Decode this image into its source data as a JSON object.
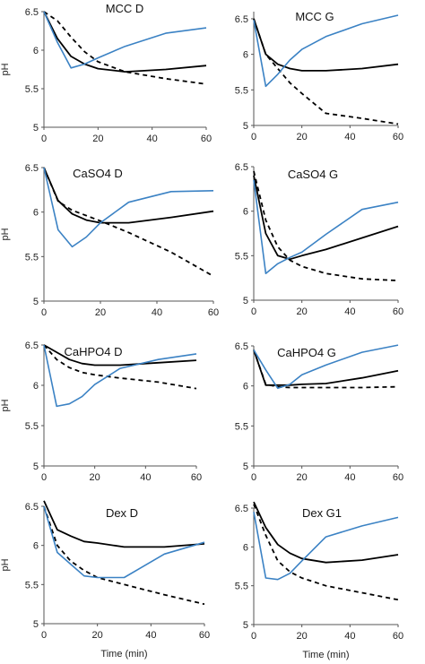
{
  "chart_data": [
    {
      "type": "line",
      "title": "MCC D",
      "ylabel": "pH",
      "xlabel": "",
      "xlim": [
        0,
        60
      ],
      "ylim": [
        5,
        6.5
      ],
      "xticks": [
        "0",
        "20",
        "40",
        "60"
      ],
      "yticks": [
        "5",
        "5.5",
        "6",
        "6.5"
      ],
      "series": [
        {
          "style": "dashed",
          "color": "#000000",
          "x": [
            0,
            5,
            10,
            15,
            20,
            30,
            45,
            60
          ],
          "y": [
            6.5,
            6.38,
            6.17,
            5.98,
            5.85,
            5.72,
            5.63,
            5.56
          ]
        },
        {
          "style": "solid",
          "color": "#000000",
          "x": [
            0,
            5,
            10,
            15,
            20,
            30,
            45,
            60
          ],
          "y": [
            6.5,
            6.15,
            5.92,
            5.82,
            5.76,
            5.72,
            5.75,
            5.8
          ]
        },
        {
          "style": "solid",
          "color": "#3b82c4",
          "x": [
            0,
            5,
            10,
            15,
            20,
            30,
            45,
            60
          ],
          "y": [
            6.5,
            6.1,
            5.77,
            5.82,
            5.9,
            6.05,
            6.22,
            6.29
          ]
        }
      ]
    },
    {
      "type": "line",
      "title": "MCC G",
      "ylabel": "",
      "xlabel": "",
      "xlim": [
        0,
        60
      ],
      "ylim": [
        5,
        6.6
      ],
      "xticks": [
        "0",
        "20",
        "40",
        "60"
      ],
      "yticks": [
        "5",
        "5.5",
        "6",
        "6.5"
      ],
      "series": [
        {
          "style": "dashed",
          "color": "#000000",
          "x": [
            0,
            5,
            10,
            15,
            20,
            30,
            45,
            60
          ],
          "y": [
            6.5,
            6.0,
            5.8,
            5.6,
            5.45,
            5.17,
            5.1,
            5.02
          ]
        },
        {
          "style": "solid",
          "color": "#000000",
          "x": [
            0,
            5,
            10,
            15,
            20,
            30,
            45,
            60
          ],
          "y": [
            6.5,
            6.0,
            5.86,
            5.8,
            5.77,
            5.77,
            5.8,
            5.86
          ]
        },
        {
          "style": "solid",
          "color": "#3b82c4",
          "x": [
            0,
            5,
            10,
            15,
            20,
            30,
            45,
            60
          ],
          "y": [
            6.48,
            5.55,
            5.72,
            5.92,
            6.07,
            6.25,
            6.43,
            6.55
          ]
        }
      ]
    },
    {
      "type": "line",
      "title": "CaSO4 D",
      "ylabel": "pH",
      "xlabel": "",
      "xlim": [
        0,
        60
      ],
      "ylim": [
        5,
        6.5
      ],
      "xticks": [
        "0",
        "20",
        "40",
        "60"
      ],
      "yticks": [
        "5",
        "5.5",
        "6",
        "6.5"
      ],
      "series": [
        {
          "style": "dashed",
          "color": "#000000",
          "x": [
            0,
            5,
            10,
            15,
            20,
            30,
            45,
            60
          ],
          "y": [
            6.5,
            6.12,
            6.02,
            5.96,
            5.9,
            5.77,
            5.55,
            5.28
          ]
        },
        {
          "style": "solid",
          "color": "#000000",
          "x": [
            0,
            5,
            10,
            15,
            20,
            30,
            45,
            60
          ],
          "y": [
            6.5,
            6.13,
            5.98,
            5.91,
            5.88,
            5.88,
            5.94,
            6.01
          ]
        },
        {
          "style": "solid",
          "color": "#3b82c4",
          "x": [
            0,
            5,
            10,
            15,
            20,
            30,
            45,
            60
          ],
          "y": [
            6.5,
            5.8,
            5.61,
            5.72,
            5.88,
            6.11,
            6.23,
            6.24
          ]
        }
      ]
    },
    {
      "type": "line",
      "title": "CaSO4 G",
      "ylabel": "",
      "xlabel": "",
      "xlim": [
        0,
        60
      ],
      "ylim": [
        5,
        6.5
      ],
      "xticks": [
        "0",
        "20",
        "40",
        "60"
      ],
      "yticks": [
        "5",
        "5.5",
        "6",
        "6.5"
      ],
      "series": [
        {
          "style": "dashed",
          "color": "#000000",
          "x": [
            0,
            5,
            10,
            15,
            20,
            30,
            45,
            60
          ],
          "y": [
            6.45,
            5.9,
            5.6,
            5.45,
            5.38,
            5.3,
            5.24,
            5.22
          ]
        },
        {
          "style": "solid",
          "color": "#000000",
          "x": [
            0,
            5,
            10,
            15,
            20,
            30,
            45,
            60
          ],
          "y": [
            6.4,
            5.75,
            5.5,
            5.46,
            5.5,
            5.57,
            5.7,
            5.83
          ]
        },
        {
          "style": "solid",
          "color": "#3b82c4",
          "x": [
            0,
            5,
            10,
            15,
            20,
            30,
            45,
            60
          ],
          "y": [
            6.35,
            5.3,
            5.41,
            5.48,
            5.54,
            5.74,
            6.02,
            6.1
          ]
        }
      ]
    },
    {
      "type": "line",
      "title": "CaHPO4 D",
      "ylabel": "pH",
      "xlabel": "",
      "xlim": [
        0,
        60
      ],
      "ylim": [
        5,
        6.5
      ],
      "xticks": [
        "0",
        "20",
        "40",
        "60"
      ],
      "yticks": [
        "5",
        "5.5",
        "6",
        "6.5"
      ],
      "series": [
        {
          "style": "dashed",
          "color": "#000000",
          "x": [
            0,
            5,
            10,
            15,
            20,
            30,
            45,
            60
          ],
          "y": [
            6.5,
            6.32,
            6.22,
            6.16,
            6.13,
            6.09,
            6.04,
            5.96
          ]
        },
        {
          "style": "solid",
          "color": "#000000",
          "x": [
            0,
            5,
            10,
            15,
            20,
            30,
            45,
            60
          ],
          "y": [
            6.5,
            6.41,
            6.32,
            6.27,
            6.25,
            6.25,
            6.28,
            6.31
          ]
        },
        {
          "style": "solid",
          "color": "#3b82c4",
          "x": [
            0,
            5,
            10,
            15,
            20,
            30,
            45,
            60
          ],
          "y": [
            6.5,
            5.74,
            5.77,
            5.86,
            6.01,
            6.21,
            6.32,
            6.39
          ]
        }
      ]
    },
    {
      "type": "line",
      "title": "CaHPO4 G",
      "ylabel": "",
      "xlabel": "",
      "xlim": [
        0,
        60
      ],
      "ylim": [
        5,
        6.5
      ],
      "xticks": [
        "0",
        "20",
        "40",
        "60"
      ],
      "yticks": [
        "5",
        "5.5",
        "6",
        "6.5"
      ],
      "series": [
        {
          "style": "dashed",
          "color": "#000000",
          "x": [
            0,
            5,
            10,
            15,
            20,
            30,
            45,
            60
          ],
          "y": [
            6.45,
            6.02,
            5.99,
            5.98,
            5.98,
            5.98,
            5.98,
            5.99
          ]
        },
        {
          "style": "solid",
          "color": "#000000",
          "x": [
            0,
            5,
            10,
            15,
            20,
            30,
            45,
            60
          ],
          "y": [
            6.45,
            6.01,
            6.01,
            6.01,
            6.02,
            6.03,
            6.1,
            6.19
          ]
        },
        {
          "style": "solid",
          "color": "#3b82c4",
          "x": [
            0,
            5,
            10,
            15,
            20,
            30,
            45,
            60
          ],
          "y": [
            6.45,
            6.2,
            5.97,
            6.02,
            6.14,
            6.26,
            6.42,
            6.51
          ]
        }
      ]
    },
    {
      "type": "line",
      "title": "Dex D",
      "ylabel": "pH",
      "xlabel": "Time (min)",
      "xlim": [
        0,
        60
      ],
      "ylim": [
        5,
        6.5
      ],
      "xticks": [
        "0",
        "20",
        "40",
        "60"
      ],
      "yticks": [
        "5",
        "5.5",
        "6",
        "6.5"
      ],
      "series": [
        {
          "style": "dashed",
          "color": "#000000",
          "x": [
            0,
            5,
            10,
            15,
            20,
            30,
            45,
            60
          ],
          "y": [
            6.5,
            6.0,
            5.8,
            5.68,
            5.59,
            5.5,
            5.37,
            5.25
          ]
        },
        {
          "style": "solid",
          "color": "#000000",
          "x": [
            0,
            5,
            10,
            15,
            20,
            30,
            45,
            60
          ],
          "y": [
            6.57,
            6.2,
            6.12,
            6.05,
            6.03,
            5.98,
            5.98,
            6.02
          ]
        },
        {
          "style": "solid",
          "color": "#3b82c4",
          "x": [
            0,
            5,
            10,
            15,
            20,
            30,
            45,
            60
          ],
          "y": [
            6.5,
            5.91,
            5.76,
            5.61,
            5.59,
            5.59,
            5.89,
            6.04
          ]
        }
      ]
    },
    {
      "type": "line",
      "title": "Dex G1",
      "ylabel": "",
      "xlabel": "Time (min)",
      "xlim": [
        0,
        60
      ],
      "ylim": [
        5,
        6.5
      ],
      "xticks": [
        "0",
        "20",
        "40",
        "60"
      ],
      "yticks": [
        "5",
        "5.5",
        "6",
        "6.5"
      ],
      "series": [
        {
          "style": "dashed",
          "color": "#000000",
          "x": [
            0,
            5,
            10,
            15,
            20,
            30,
            45,
            60
          ],
          "y": [
            6.55,
            6.15,
            5.82,
            5.68,
            5.6,
            5.5,
            5.41,
            5.32
          ]
        },
        {
          "style": "solid",
          "color": "#000000",
          "x": [
            0,
            5,
            10,
            15,
            20,
            30,
            45,
            60
          ],
          "y": [
            6.58,
            6.25,
            6.03,
            5.92,
            5.85,
            5.8,
            5.83,
            5.9
          ]
        },
        {
          "style": "solid",
          "color": "#3b82c4",
          "x": [
            0,
            5,
            10,
            15,
            20,
            30,
            45,
            60
          ],
          "y": [
            6.45,
            5.6,
            5.58,
            5.66,
            5.82,
            6.13,
            6.27,
            6.38
          ]
        }
      ]
    }
  ]
}
